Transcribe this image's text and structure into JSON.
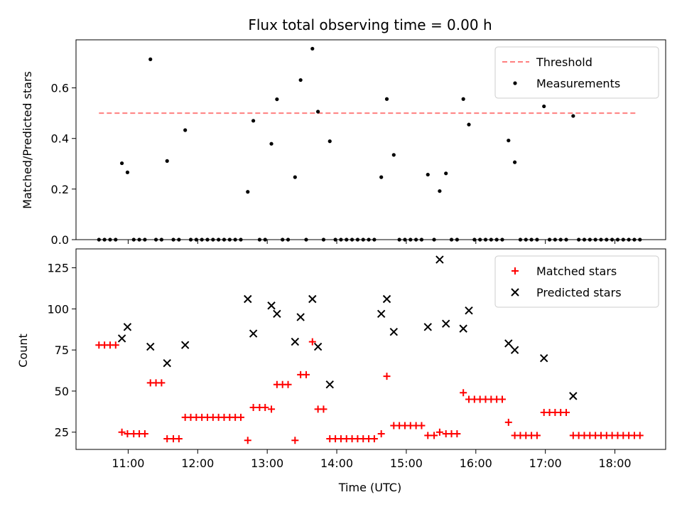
{
  "chart_data": [
    {
      "type": "scatter",
      "title": "Flux total observing time = 0.00 h",
      "xlabel": "",
      "ylabel": "Matched/Predicted stars",
      "xlim": [
        10.25,
        18.73
      ],
      "ylim": [
        0.0,
        0.79
      ],
      "yticks": [
        0.0,
        0.2,
        0.4,
        0.6
      ],
      "ytick_labels": [
        "0.0",
        "0.2",
        "0.4",
        "0.6"
      ],
      "xticks": [
        11,
        12,
        13,
        14,
        15,
        16,
        17,
        18
      ],
      "legend_position": "top-right",
      "threshold": {
        "name": "Threshold",
        "value": 0.5,
        "x": [
          10.58,
          18.33
        ],
        "color": "#ff7f7f",
        "style": "dashed"
      },
      "series": [
        {
          "name": "Measurements",
          "color": "#000000",
          "marker": "dot",
          "points": [
            [
              10.58,
              0
            ],
            [
              10.66,
              0
            ],
            [
              10.74,
              0
            ],
            [
              10.82,
              0
            ],
            [
              10.91,
              0.302
            ],
            [
              10.99,
              0.266
            ],
            [
              11.08,
              0
            ],
            [
              11.16,
              0
            ],
            [
              11.24,
              0
            ],
            [
              11.32,
              0.713
            ],
            [
              11.4,
              0
            ],
            [
              11.48,
              0
            ],
            [
              11.56,
              0.311
            ],
            [
              11.65,
              0
            ],
            [
              11.73,
              0
            ],
            [
              11.82,
              0.433
            ],
            [
              11.9,
              0
            ],
            [
              11.98,
              0
            ],
            [
              12.06,
              0
            ],
            [
              12.14,
              0
            ],
            [
              12.22,
              0
            ],
            [
              12.3,
              0
            ],
            [
              12.38,
              0
            ],
            [
              12.46,
              0
            ],
            [
              12.54,
              0
            ],
            [
              12.62,
              0
            ],
            [
              12.72,
              0.189
            ],
            [
              12.8,
              0.47
            ],
            [
              12.89,
              0
            ],
            [
              12.97,
              0
            ],
            [
              13.06,
              0.379
            ],
            [
              13.14,
              0.555
            ],
            [
              13.22,
              0
            ],
            [
              13.3,
              0
            ],
            [
              13.4,
              0.247
            ],
            [
              13.48,
              0.631
            ],
            [
              13.56,
              0
            ],
            [
              13.65,
              0.755
            ],
            [
              13.73,
              0.506
            ],
            [
              13.81,
              0
            ],
            [
              13.9,
              0.389
            ],
            [
              13.98,
              0
            ],
            [
              14.06,
              0
            ],
            [
              14.14,
              0
            ],
            [
              14.22,
              0
            ],
            [
              14.3,
              0
            ],
            [
              14.38,
              0
            ],
            [
              14.46,
              0
            ],
            [
              14.54,
              0
            ],
            [
              14.64,
              0.247
            ],
            [
              14.72,
              0.556
            ],
            [
              14.82,
              0.335
            ],
            [
              14.9,
              0
            ],
            [
              14.98,
              0
            ],
            [
              15.06,
              0
            ],
            [
              15.14,
              0
            ],
            [
              15.22,
              0
            ],
            [
              15.31,
              0.257
            ],
            [
              15.4,
              0
            ],
            [
              15.48,
              0.192
            ],
            [
              15.57,
              0.262
            ],
            [
              15.65,
              0
            ],
            [
              15.73,
              0
            ],
            [
              15.82,
              0.556
            ],
            [
              15.9,
              0.455
            ],
            [
              15.98,
              0
            ],
            [
              16.06,
              0
            ],
            [
              16.14,
              0
            ],
            [
              16.22,
              0
            ],
            [
              16.3,
              0
            ],
            [
              16.38,
              0
            ],
            [
              16.47,
              0.392
            ],
            [
              16.56,
              0.306
            ],
            [
              16.64,
              0
            ],
            [
              16.72,
              0
            ],
            [
              16.8,
              0
            ],
            [
              16.88,
              0
            ],
            [
              16.98,
              0.527
            ],
            [
              17.06,
              0
            ],
            [
              17.14,
              0
            ],
            [
              17.22,
              0
            ],
            [
              17.3,
              0
            ],
            [
              17.4,
              0.489
            ],
            [
              17.48,
              0
            ],
            [
              17.56,
              0
            ],
            [
              17.64,
              0
            ],
            [
              17.72,
              0
            ],
            [
              17.8,
              0
            ],
            [
              17.88,
              0
            ],
            [
              17.96,
              0
            ],
            [
              18.04,
              0
            ],
            [
              18.12,
              0
            ],
            [
              18.2,
              0
            ],
            [
              18.28,
              0
            ],
            [
              18.36,
              0
            ]
          ]
        }
      ]
    },
    {
      "type": "scatter",
      "title": "",
      "xlabel": "Time (UTC)",
      "ylabel": "Count",
      "xlim": [
        10.25,
        18.73
      ],
      "ylim": [
        14.5,
        136.5
      ],
      "yticks": [
        25,
        50,
        75,
        100,
        125
      ],
      "ytick_labels": [
        "25",
        "50",
        "75",
        "100",
        "125"
      ],
      "xticks": [
        11,
        12,
        13,
        14,
        15,
        16,
        17,
        18
      ],
      "xtick_labels": [
        "11:00",
        "12:00",
        "13:00",
        "14:00",
        "15:00",
        "16:00",
        "17:00",
        "18:00"
      ],
      "legend_position": "top-right",
      "series": [
        {
          "name": "Matched stars",
          "color": "#ff0000",
          "marker": "plus",
          "points": [
            [
              10.58,
              78
            ],
            [
              10.66,
              78
            ],
            [
              10.74,
              78
            ],
            [
              10.82,
              78
            ],
            [
              10.91,
              25
            ],
            [
              10.99,
              24
            ],
            [
              11.08,
              24
            ],
            [
              11.16,
              24
            ],
            [
              11.24,
              24
            ],
            [
              11.32,
              55
            ],
            [
              11.4,
              55
            ],
            [
              11.48,
              55
            ],
            [
              11.56,
              21
            ],
            [
              11.65,
              21
            ],
            [
              11.73,
              21
            ],
            [
              11.82,
              34
            ],
            [
              11.9,
              34
            ],
            [
              11.98,
              34
            ],
            [
              12.06,
              34
            ],
            [
              12.14,
              34
            ],
            [
              12.22,
              34
            ],
            [
              12.3,
              34
            ],
            [
              12.38,
              34
            ],
            [
              12.46,
              34
            ],
            [
              12.54,
              34
            ],
            [
              12.62,
              34
            ],
            [
              12.72,
              20
            ],
            [
              12.8,
              40
            ],
            [
              12.89,
              40
            ],
            [
              12.97,
              40
            ],
            [
              13.06,
              39
            ],
            [
              13.14,
              54
            ],
            [
              13.22,
              54
            ],
            [
              13.3,
              54
            ],
            [
              13.4,
              20
            ],
            [
              13.48,
              60
            ],
            [
              13.56,
              60
            ],
            [
              13.65,
              80
            ],
            [
              13.73,
              39
            ],
            [
              13.81,
              39
            ],
            [
              13.9,
              21
            ],
            [
              13.98,
              21
            ],
            [
              14.06,
              21
            ],
            [
              14.14,
              21
            ],
            [
              14.22,
              21
            ],
            [
              14.3,
              21
            ],
            [
              14.38,
              21
            ],
            [
              14.46,
              21
            ],
            [
              14.54,
              21
            ],
            [
              14.64,
              24
            ],
            [
              14.72,
              59
            ],
            [
              14.82,
              29
            ],
            [
              14.9,
              29
            ],
            [
              14.98,
              29
            ],
            [
              15.06,
              29
            ],
            [
              15.14,
              29
            ],
            [
              15.22,
              29
            ],
            [
              15.31,
              23
            ],
            [
              15.4,
              23
            ],
            [
              15.48,
              25
            ],
            [
              15.57,
              24
            ],
            [
              15.65,
              24
            ],
            [
              15.73,
              24
            ],
            [
              15.82,
              49
            ],
            [
              15.9,
              45
            ],
            [
              15.98,
              45
            ],
            [
              16.06,
              45
            ],
            [
              16.14,
              45
            ],
            [
              16.22,
              45
            ],
            [
              16.3,
              45
            ],
            [
              16.38,
              45
            ],
            [
              16.47,
              31
            ],
            [
              16.56,
              23
            ],
            [
              16.64,
              23
            ],
            [
              16.72,
              23
            ],
            [
              16.8,
              23
            ],
            [
              16.88,
              23
            ],
            [
              16.98,
              37
            ],
            [
              17.06,
              37
            ],
            [
              17.14,
              37
            ],
            [
              17.22,
              37
            ],
            [
              17.3,
              37
            ],
            [
              17.4,
              23
            ],
            [
              17.48,
              23
            ],
            [
              17.56,
              23
            ],
            [
              17.64,
              23
            ],
            [
              17.72,
              23
            ],
            [
              17.8,
              23
            ],
            [
              17.88,
              23
            ],
            [
              17.96,
              23
            ],
            [
              18.04,
              23
            ],
            [
              18.12,
              23
            ],
            [
              18.2,
              23
            ],
            [
              18.28,
              23
            ],
            [
              18.36,
              23
            ]
          ]
        },
        {
          "name": "Predicted stars",
          "color": "#000000",
          "marker": "x",
          "points": [
            [
              10.91,
              82
            ],
            [
              10.99,
              89
            ],
            [
              11.32,
              77
            ],
            [
              11.56,
              67
            ],
            [
              11.82,
              78
            ],
            [
              12.72,
              106
            ],
            [
              12.8,
              85
            ],
            [
              13.06,
              102
            ],
            [
              13.14,
              97
            ],
            [
              13.4,
              80
            ],
            [
              13.48,
              95
            ],
            [
              13.65,
              106
            ],
            [
              13.73,
              77
            ],
            [
              13.9,
              54
            ],
            [
              14.64,
              97
            ],
            [
              14.72,
              106
            ],
            [
              14.82,
              86
            ],
            [
              15.31,
              89
            ],
            [
              15.48,
              130
            ],
            [
              15.57,
              91
            ],
            [
              15.82,
              88
            ],
            [
              15.9,
              99
            ],
            [
              16.47,
              79
            ],
            [
              16.56,
              75
            ],
            [
              16.98,
              70
            ],
            [
              17.4,
              47
            ]
          ]
        }
      ]
    }
  ]
}
